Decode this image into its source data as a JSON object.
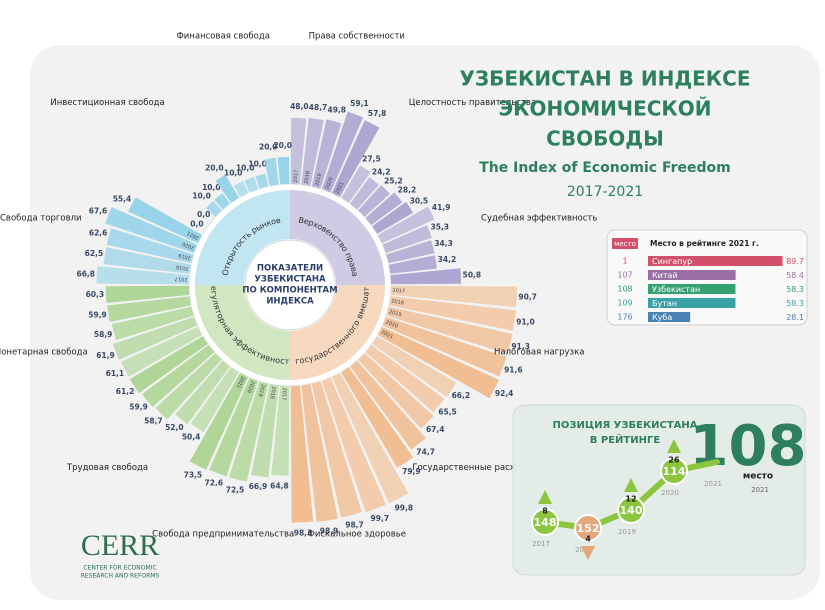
{
  "title": [
    "УЗБЕКИСТАН В ИНДЕКСЕ",
    "ЭКОНОМИЧЕСКОЙ",
    "СВОБОДЫ"
  ],
  "subtitle": "The Index of Economic Freedom",
  "period": "2017-2021",
  "center_label": [
    "ПОКАЗАТЕЛИ",
    "УЗБЕКИСТАНА",
    "ПО КОМПОНЕНТАМ",
    "ИНДЕКСА"
  ],
  "years": [
    "2017",
    "2018",
    "2019",
    "2020",
    "2021"
  ],
  "groups": [
    {
      "name": "Верховенство права",
      "color": "#a99fcf",
      "components": [
        {
          "name": "Права собственности",
          "values": [
            48.0,
            48.7,
            49.8,
            59.1,
            57.8
          ],
          "value_labels": [
            "48,0",
            "48,7",
            "49,8",
            "59,1",
            "57,8"
          ]
        },
        {
          "name": "Целостность правительства",
          "values": [
            27.5,
            24.2,
            25.2,
            28.2,
            30.5
          ],
          "value_labels": [
            "27,5",
            "24,2",
            "25,2",
            "28,2",
            "30,5"
          ]
        },
        {
          "name": "Судебная эффективность",
          "values": [
            41.9,
            35.3,
            34.3,
            34.2,
            50.8
          ],
          "value_labels": [
            "41,9",
            "35,3",
            "34,3",
            "34,2",
            "50,8"
          ]
        }
      ]
    },
    {
      "name": "Уровень государственного вмешательства",
      "color": "#f1ba8c",
      "components": [
        {
          "name": "Налоговая нагрузка",
          "values": [
            90.7,
            91.0,
            91.3,
            91.6,
            92.4
          ],
          "value_labels": [
            "90,7",
            "91,0",
            "91,3",
            "91,6",
            "92,4"
          ]
        },
        {
          "name": "Государственные расходы",
          "values": [
            66.2,
            65.5,
            67.4,
            74.7,
            79.9
          ],
          "value_labels": [
            "66,2",
            "65,5",
            "67,4",
            "74,7",
            "79,9"
          ]
        },
        {
          "name": "Фискальное здоровье",
          "values": [
            99.8,
            99.7,
            98.7,
            98.9,
            98.3
          ],
          "value_labels": [
            "99,8",
            "99,7",
            "98,7",
            "98,9",
            "98,3"
          ]
        }
      ]
    },
    {
      "name": "Регуляторная эффективность",
      "color": "#a9d38f",
      "components": [
        {
          "name": "Свобода предпринимательства",
          "values": [
            64.8,
            66.9,
            72.5,
            72.6,
            73.5
          ],
          "value_labels": [
            "64,8",
            "66,9",
            "72,5",
            "72,6",
            "73,5"
          ]
        },
        {
          "name": "Трудовая свобода",
          "values": [
            50.4,
            52.0,
            58.7,
            59.9,
            61.2
          ],
          "value_labels": [
            "50,4",
            "52,0",
            "58,7",
            "59,9",
            "61,2"
          ]
        },
        {
          "name": "Монетарная свобода",
          "values": [
            61.1,
            61.9,
            58.9,
            59.9,
            60.3
          ],
          "value_labels": [
            "61,1",
            "61,9",
            "58,9",
            "59,9",
            "60,3"
          ]
        }
      ]
    },
    {
      "name": "Открытость рынков",
      "color": "#8fd0e8",
      "components": [
        {
          "name": "Свобода торговли",
          "values": [
            66.8,
            62.5,
            62.6,
            67.6,
            55.4
          ],
          "value_labels": [
            "66,8",
            "62,5",
            "62,6",
            "67,6",
            "55,4"
          ]
        },
        {
          "name": "Инвестиционная свобода",
          "values": [
            0.0,
            0.0,
            10.0,
            10.0,
            20.0
          ],
          "value_labels": [
            "0,0",
            "0,0",
            "10,0",
            "10,0",
            "20,0"
          ]
        },
        {
          "name": "Финансовая свобода",
          "values": [
            10.0,
            10.0,
            10.0,
            20.0,
            20.0
          ],
          "value_labels": [
            "10,0",
            "10,0",
            "10,0",
            "20,0",
            "20,0"
          ]
        }
      ]
    }
  ],
  "ranking": {
    "rank_header": "место",
    "header": "Место в рейтинге 2021 г.",
    "rows": [
      {
        "rank": 1,
        "country": "Сингапур",
        "score": 89.7,
        "color": "#d2506a"
      },
      {
        "rank": 107,
        "country": "Китай",
        "score": 58.4,
        "color": "#9a6fa6"
      },
      {
        "rank": 108,
        "country": "Узбекистан",
        "score": 58.3,
        "color": "#35a070"
      },
      {
        "rank": 109,
        "country": "Бутан",
        "score": 58.3,
        "color": "#3aa2a6"
      },
      {
        "rank": 176,
        "country": "Куба",
        "score": 28.1,
        "color": "#4b82b4"
      }
    ]
  },
  "position": {
    "title": [
      "ПОЗИЦИЯ УЗБЕКИСТАНА",
      "В РЕЙТИНГЕ"
    ],
    "current": 108,
    "current_label": "место",
    "current_year": "2021",
    "years": [
      "2017",
      "2018",
      "2019",
      "2020",
      "2021"
    ],
    "ranks": [
      148,
      152,
      140,
      114,
      108
    ],
    "changes": [
      {
        "value": 8,
        "direction": "up"
      },
      {
        "value": 4,
        "direction": "down"
      },
      {
        "value": 12,
        "direction": "up"
      },
      {
        "value": 26,
        "direction": "up"
      }
    ]
  },
  "logo": {
    "name": "CERR",
    "tagline": [
      "CENTER FOR ECONOMIC",
      "RESEARCH AND REFORMS"
    ]
  }
}
